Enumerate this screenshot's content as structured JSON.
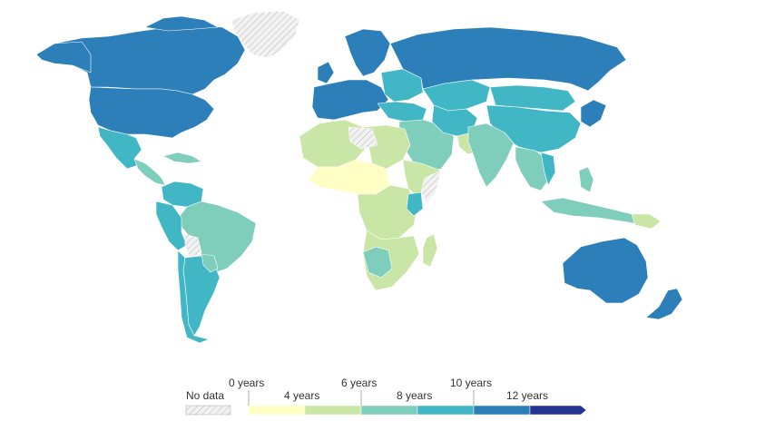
{
  "legend": {
    "no_data_label": "No data",
    "tick_labels_top": [
      "0 years",
      "6 years",
      "10 years"
    ],
    "tick_labels_bottom": [
      "4 years",
      "8 years",
      "12 years"
    ],
    "bin_colors": [
      "#ffffc5",
      "#c9e6a6",
      "#7fcdbb",
      "#41b6c4",
      "#2c7fb8",
      "#253494"
    ],
    "no_data_color": "#eeeeee"
  },
  "palette": {
    "y4": "#ffffc5",
    "y6": "#c9e6a6",
    "y8": "#7fcdbb",
    "y10": "#41b6c4",
    "y12": "#2c7fb8",
    "y14": "#253494",
    "nodata": "#e8e8e8"
  }
}
